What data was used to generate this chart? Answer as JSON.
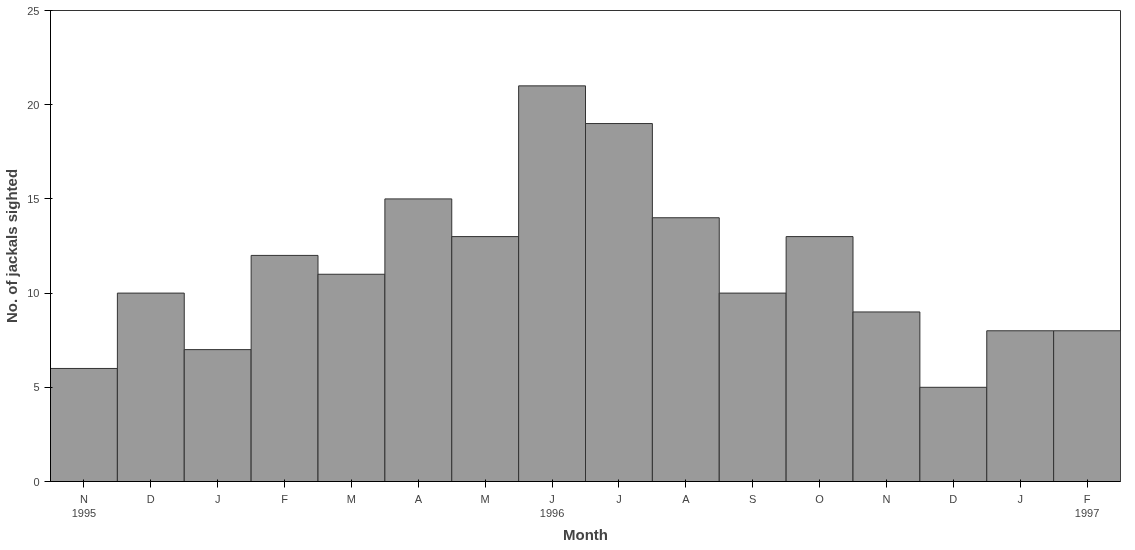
{
  "chart_data": {
    "type": "bar",
    "xlabel": "Month",
    "ylabel": "No. of jackals sighted",
    "categories": [
      "N\n1995",
      "D",
      "J",
      "F",
      "M",
      "A",
      "M",
      "J\n1996",
      "J",
      "A",
      "S",
      "O",
      "N",
      "D",
      "J",
      "F\n1997"
    ],
    "values": [
      6,
      10,
      7,
      12,
      11,
      15,
      13,
      21,
      19,
      14,
      10,
      13,
      9,
      5,
      8,
      8
    ],
    "color": "#9a9a9a",
    "ylim": [
      0,
      25
    ],
    "yticks": [
      0,
      5,
      10,
      15,
      20,
      25
    ],
    "grid": false
  }
}
